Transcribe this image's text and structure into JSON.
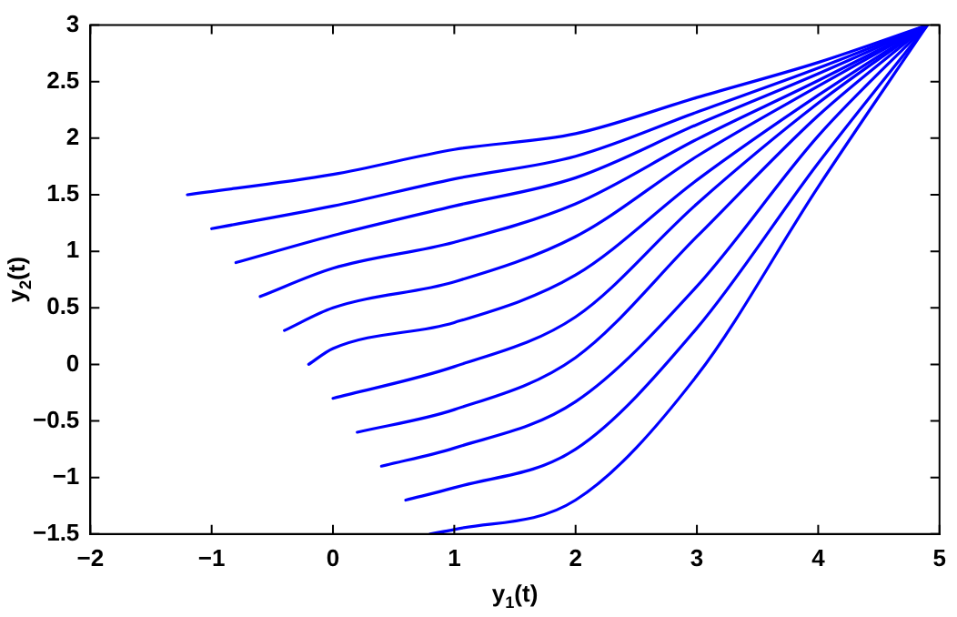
{
  "chart_data": {
    "type": "line",
    "xlabel": "y$_{1}$(t)",
    "ylabel": "y$_{2}$(t)",
    "xlim": [
      -2,
      5
    ],
    "ylim": [
      -1.5,
      3
    ],
    "xticks": [
      -2,
      -1,
      0,
      1,
      2,
      3,
      4,
      5
    ],
    "yticks": [
      -1.5,
      -1,
      -0.5,
      0,
      0.5,
      1,
      1.5,
      2,
      2.5,
      3
    ],
    "grid": false,
    "legend": false,
    "marker": "none",
    "line_style": "solid",
    "series": [
      {
        "color": "#0000ff",
        "x": [
          -1.2,
          0,
          1,
          2,
          3,
          4,
          4.9
        ],
        "values": [
          1.5,
          1.68,
          1.9,
          2.04,
          2.36,
          2.67,
          3
        ]
      },
      {
        "color": "#0000ff",
        "x": [
          -1,
          0,
          1,
          2,
          3,
          4,
          4.9
        ],
        "values": [
          1.2,
          1.4,
          1.64,
          1.84,
          2.23,
          2.62,
          3
        ]
      },
      {
        "color": "#0000ff",
        "x": [
          -0.8,
          0,
          1,
          2,
          3,
          4,
          4.9
        ],
        "values": [
          0.9,
          1.14,
          1.4,
          1.65,
          2.12,
          2.57,
          3
        ]
      },
      {
        "color": "#0000ff",
        "x": [
          -0.6,
          0,
          1,
          2,
          3,
          4,
          4.9
        ],
        "values": [
          0.6,
          0.85,
          1.08,
          1.42,
          1.99,
          2.51,
          3
        ]
      },
      {
        "color": "#0000ff",
        "x": [
          -0.4,
          0,
          1,
          2,
          3,
          4,
          4.9
        ],
        "values": [
          0.3,
          0.5,
          0.73,
          1.13,
          1.84,
          2.46,
          3
        ]
      },
      {
        "color": "#0000ff",
        "x": [
          -0.2,
          0,
          1,
          2,
          3,
          4,
          4.9
        ],
        "values": [
          0,
          0.14,
          0.37,
          0.79,
          1.63,
          2.38,
          3
        ]
      },
      {
        "color": "#0000ff",
        "x": [
          0,
          1,
          2,
          3,
          4,
          4.9
        ],
        "values": [
          -0.3,
          -0.02,
          0.42,
          1.42,
          2.31,
          3
        ]
      },
      {
        "color": "#0000ff",
        "x": [
          0.2,
          1,
          2,
          3,
          4,
          4.9
        ],
        "values": [
          -0.6,
          -0.4,
          0.06,
          1.13,
          2.2,
          3
        ]
      },
      {
        "color": "#0000ff",
        "x": [
          0.4,
          1,
          2,
          3,
          4,
          4.9
        ],
        "values": [
          -0.9,
          -0.74,
          -0.33,
          0.69,
          2.02,
          3
        ]
      },
      {
        "color": "#0000ff",
        "x": [
          0.6,
          1,
          2,
          3,
          4,
          4.9
        ],
        "values": [
          -1.2,
          -1.09,
          -0.75,
          0.32,
          1.78,
          3
        ]
      },
      {
        "color": "#0000ff",
        "x": [
          0.8,
          1,
          2,
          3,
          4,
          4.9
        ],
        "values": [
          -1.5,
          -1.46,
          -1.2,
          -0.1,
          1.57,
          3
        ]
      }
    ]
  }
}
